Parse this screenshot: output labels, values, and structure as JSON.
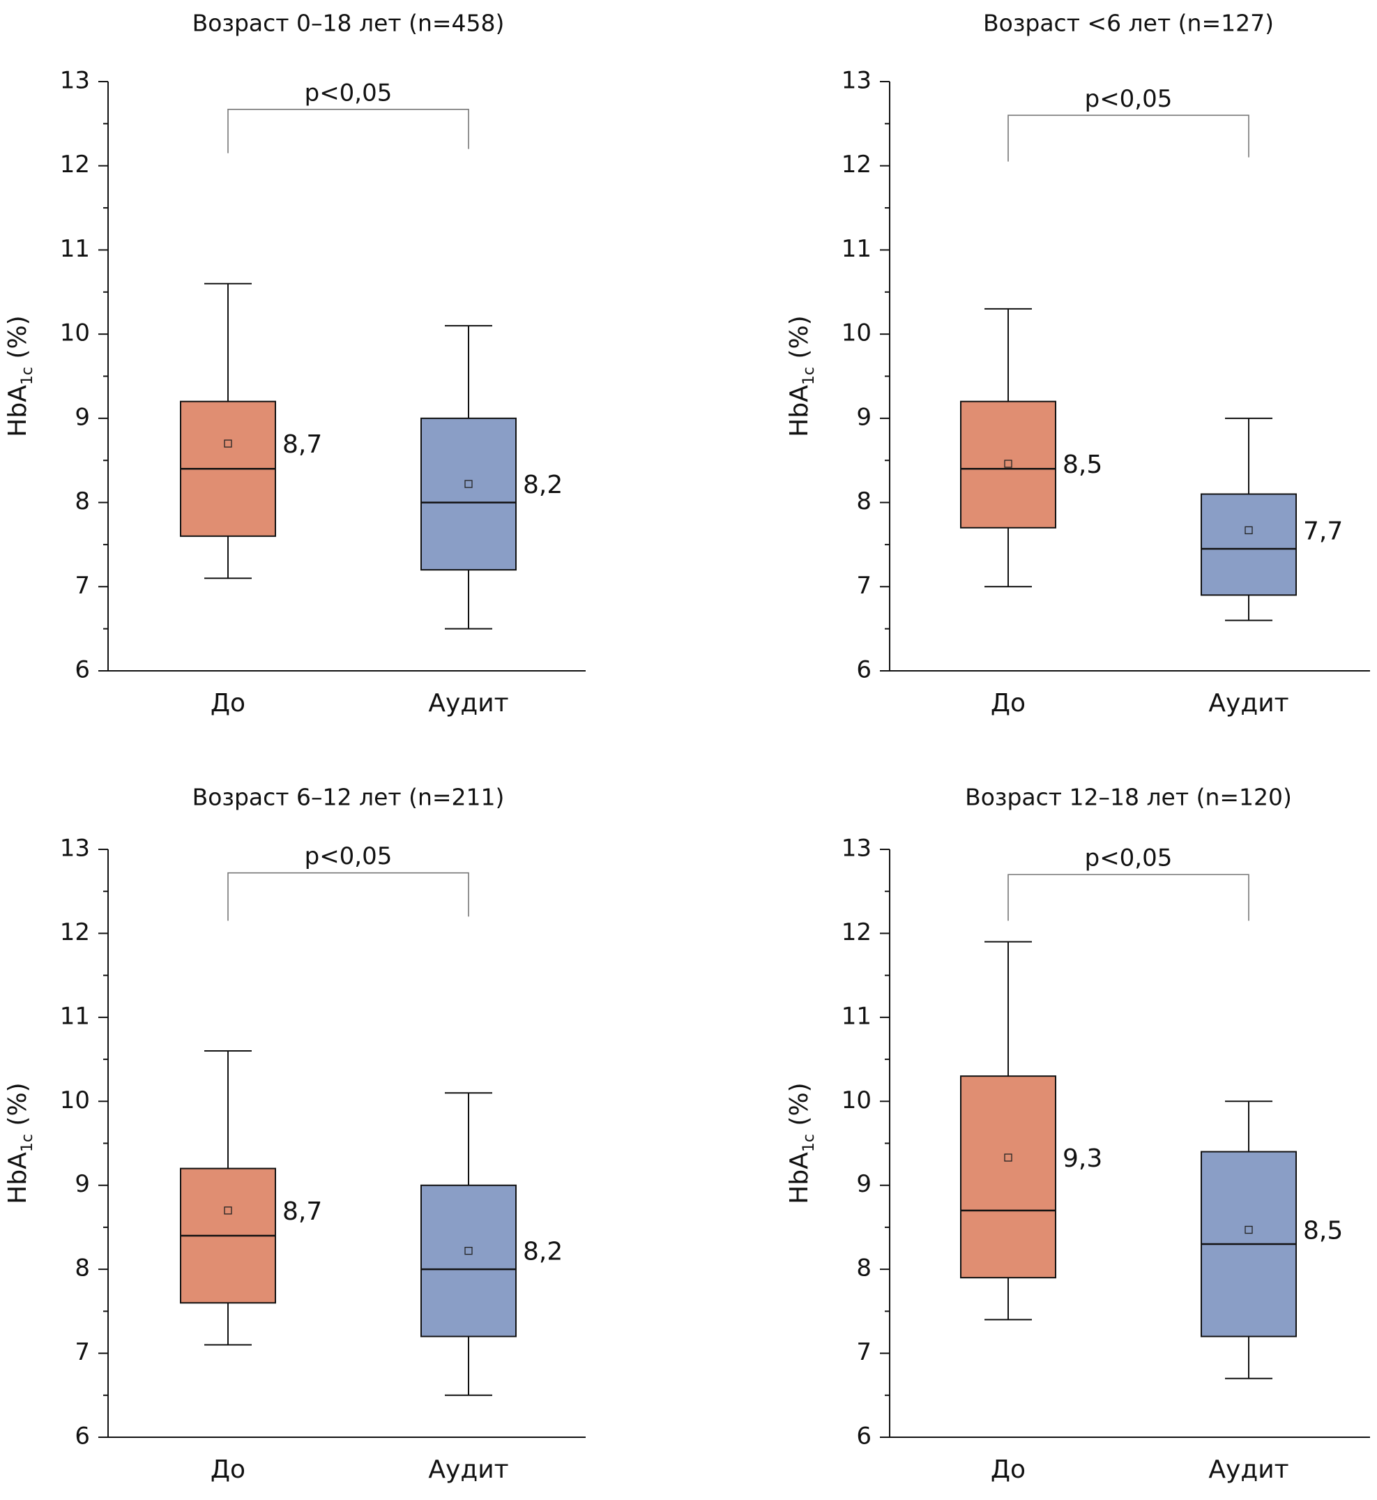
{
  "chart_data": [
    {
      "type": "box",
      "title": "Возраст 0–18 лет (n=458)",
      "ylabel": {
        "main": "HbA",
        "sub": "1c",
        "unit": " (%)"
      },
      "ylim": [
        6,
        13
      ],
      "yticks": [
        6,
        7,
        8,
        9,
        10,
        11,
        12,
        13
      ],
      "categories": [
        "До",
        "Аудит"
      ],
      "colors": [
        "#e08e72",
        "#8a9ec6"
      ],
      "boxes": [
        {
          "min": 7.1,
          "q1": 7.6,
          "median": 8.4,
          "q3": 9.2,
          "max": 10.6,
          "mean": 8.7,
          "mean_label": "8,7"
        },
        {
          "min": 6.5,
          "q1": 7.2,
          "median": 8.0,
          "q3": 9.0,
          "max": 10.1,
          "mean": 8.22,
          "mean_label": "8,2"
        }
      ],
      "annotation": {
        "text": "p<0,05",
        "bracket_y": 12.67,
        "left_end": 12.15,
        "right_end": 12.2
      }
    },
    {
      "type": "box",
      "title": "Возраст <6 лет (n=127)",
      "ylabel": {
        "main": "HbA",
        "sub": "1c",
        "unit": " (%)"
      },
      "ylim": [
        6,
        13
      ],
      "yticks": [
        6,
        7,
        8,
        9,
        10,
        11,
        12,
        13
      ],
      "categories": [
        "До",
        "Аудит"
      ],
      "colors": [
        "#e08e72",
        "#8a9ec6"
      ],
      "boxes": [
        {
          "min": 7.0,
          "q1": 7.7,
          "median": 8.4,
          "q3": 9.2,
          "max": 10.3,
          "mean": 8.46,
          "mean_label": "8,5"
        },
        {
          "min": 6.6,
          "q1": 6.9,
          "median": 7.45,
          "q3": 8.1,
          "max": 9.0,
          "mean": 7.67,
          "mean_label": "7,7"
        }
      ],
      "annotation": {
        "text": "p<0,05",
        "bracket_y": 12.6,
        "left_end": 12.05,
        "right_end": 12.1
      }
    },
    {
      "type": "box",
      "title": "Возраст 6–12 лет (n=211)",
      "ylabel": {
        "main": "HbA",
        "sub": "1c",
        "unit": " (%)"
      },
      "ylim": [
        6,
        13
      ],
      "yticks": [
        6,
        7,
        8,
        9,
        10,
        11,
        12,
        13
      ],
      "categories": [
        "До",
        "Аудит"
      ],
      "colors": [
        "#e08e72",
        "#8a9ec6"
      ],
      "boxes": [
        {
          "min": 7.1,
          "q1": 7.6,
          "median": 8.4,
          "q3": 9.2,
          "max": 10.6,
          "mean": 8.7,
          "mean_label": "8,7"
        },
        {
          "min": 6.5,
          "q1": 7.2,
          "median": 8.0,
          "q3": 9.0,
          "max": 10.1,
          "mean": 8.22,
          "mean_label": "8,2"
        }
      ],
      "annotation": {
        "text": "p<0,05",
        "bracket_y": 12.72,
        "left_end": 12.15,
        "right_end": 12.2
      }
    },
    {
      "type": "box",
      "title": "Возраст 12–18 лет (n=120)",
      "ylabel": {
        "main": "HbA",
        "sub": "1c",
        "unit": " (%)"
      },
      "ylim": [
        6,
        13
      ],
      "yticks": [
        6,
        7,
        8,
        9,
        10,
        11,
        12,
        13
      ],
      "categories": [
        "До",
        "Аудит"
      ],
      "colors": [
        "#e08e72",
        "#8a9ec6"
      ],
      "boxes": [
        {
          "min": 7.4,
          "q1": 7.9,
          "median": 8.7,
          "q3": 10.3,
          "max": 11.9,
          "mean": 9.33,
          "mean_label": "9,3"
        },
        {
          "min": 6.7,
          "q1": 7.2,
          "median": 8.3,
          "q3": 9.4,
          "max": 10.0,
          "mean": 8.47,
          "mean_label": "8,5"
        }
      ],
      "annotation": {
        "text": "p<0,05",
        "bracket_y": 12.7,
        "left_end": 12.15,
        "right_end": 12.15
      }
    }
  ]
}
